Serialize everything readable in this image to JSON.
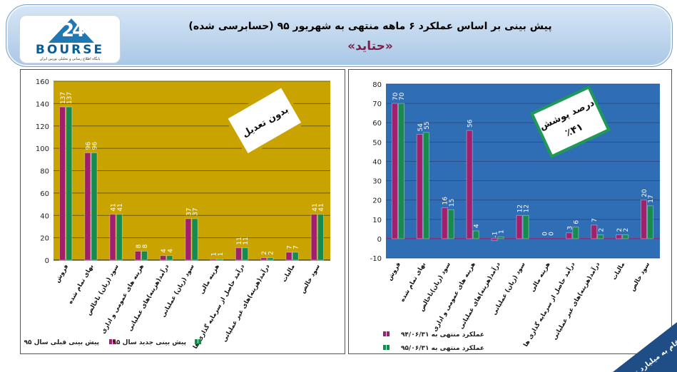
{
  "header": {
    "logo_word": "BOURSE",
    "logo_number": "24",
    "logo_subtitle": "پایگاه اطلاع رسانی و تحلیلی بورس ایران",
    "title": "پیش بینی بر اساس عملکرد ۶ ماهه منتهی به شهریور ۹۵ (حسابرسی شده)",
    "company": "«حتاید»"
  },
  "footer": {
    "unit_label": "ارقام به میلیارد تومان"
  },
  "charts": {
    "left": {
      "badge": "بدون تعدیل"
    },
    "right": {
      "badge_line1": "درصد پوشش",
      "badge_line2": "٪۴۱"
    }
  },
  "chart_data": [
    {
      "type": "bar",
      "categories": [
        "فروش",
        "بهای تمام شده",
        "سود (زیان) ناخالص",
        "هزینه های عمومی و اداری",
        "درآمد(هزینه)های عملیاتی",
        "سود (زیان) عملیاتی",
        "هزینه مالی",
        "درآمد حاصل از سرمایه گذاری ها",
        "درآمد(هزینه)های غیر عملیاتی",
        "مالیات",
        "سود خالص"
      ],
      "series": [
        {
          "name": "پیش بینی قبلی سال ۹۵",
          "color": "#a1206e",
          "values": [
            137,
            96,
            41,
            8,
            4,
            37,
            1,
            11,
            2,
            7,
            41
          ]
        },
        {
          "name": "پیش بینی جدید سال ۹۵",
          "color": "#178a4d",
          "values": [
            137,
            96,
            41,
            8,
            4,
            37,
            1,
            11,
            2,
            7,
            41
          ]
        }
      ],
      "ylim": [
        0,
        160
      ],
      "yticks": [
        0,
        20,
        40,
        60,
        80,
        100,
        120,
        140,
        160
      ],
      "grid": true,
      "legend": "bottom",
      "background": "#c9a400"
    },
    {
      "type": "bar",
      "categories": [
        "فروش",
        "بهای تمام شده",
        "سود (زیان)ناخالص",
        "هزینه های عمومی و اداری",
        "درآمد(هزینه)های عملیاتی",
        "سود (زیان) عملیاتی",
        "هزینه مالی",
        "درآمد حاصل از سرمایه گذاری ها",
        "درآمد(هزینه)های غیر عملیاتی",
        "مالیات",
        "سود خالص"
      ],
      "series": [
        {
          "name": "عملکرد منتهی به ۹۴/۰۶/۳۱",
          "color": "#a1206e",
          "values": [
            70,
            54,
            16,
            56,
            -1,
            12,
            0,
            3,
            7,
            2,
            20
          ]
        },
        {
          "name": "عملکرد منتهی به ۹۵/۰۶/۳۱",
          "color": "#178a4d",
          "values": [
            70,
            55,
            15,
            4,
            1,
            12,
            0,
            6,
            2,
            2,
            17
          ]
        }
      ],
      "ylim": [
        -10,
        80
      ],
      "yticks": [
        -10,
        0,
        10,
        20,
        30,
        40,
        50,
        60,
        70,
        80
      ],
      "grid": true,
      "legend": "bottom",
      "background": "#2f6eb5"
    }
  ]
}
